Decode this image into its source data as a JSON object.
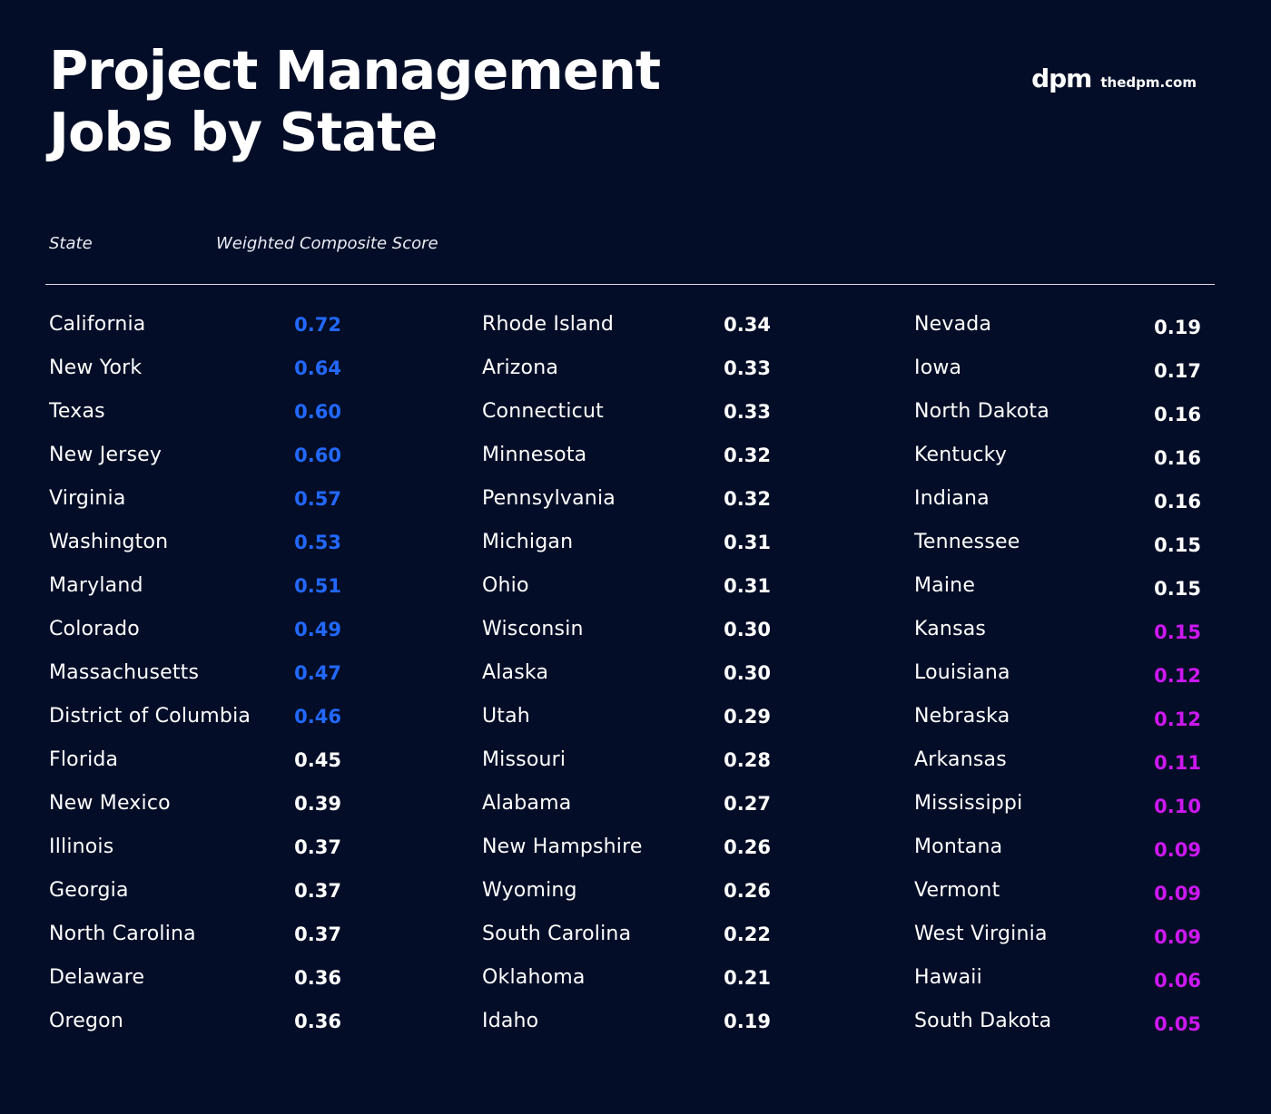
{
  "title": {
    "line1": "Project Management",
    "line2": "Jobs by State"
  },
  "brand": {
    "logo": "dpm",
    "site": "thedpm.com"
  },
  "headers": {
    "state": "State",
    "score": "Weighted Composite Score"
  },
  "colors": {
    "background": "#030d27",
    "top_tier": "#2268ff",
    "mid_tier": "#ffffff",
    "bottom_tier": "#cc18f0"
  },
  "columns": [
    [
      {
        "state": "California",
        "score": "0.72",
        "tier": "blue"
      },
      {
        "state": "New York",
        "score": "0.64",
        "tier": "blue"
      },
      {
        "state": "Texas",
        "score": "0.60",
        "tier": "blue"
      },
      {
        "state": "New Jersey",
        "score": "0.60",
        "tier": "blue"
      },
      {
        "state": "Virginia",
        "score": "0.57",
        "tier": "blue"
      },
      {
        "state": "Washington",
        "score": "0.53",
        "tier": "blue"
      },
      {
        "state": "Maryland",
        "score": "0.51",
        "tier": "blue"
      },
      {
        "state": "Colorado",
        "score": "0.49",
        "tier": "blue"
      },
      {
        "state": "Massachusetts",
        "score": "0.47",
        "tier": "blue"
      },
      {
        "state": "District of Columbia",
        "score": "0.46",
        "tier": "blue"
      },
      {
        "state": "Florida",
        "score": "0.45",
        "tier": "white"
      },
      {
        "state": "New Mexico",
        "score": "0.39",
        "tier": "white"
      },
      {
        "state": "Illinois",
        "score": "0.37",
        "tier": "white"
      },
      {
        "state": "Georgia",
        "score": "0.37",
        "tier": "white"
      },
      {
        "state": "North Carolina",
        "score": "0.37",
        "tier": "white"
      },
      {
        "state": "Delaware",
        "score": "0.36",
        "tier": "white"
      },
      {
        "state": "Oregon",
        "score": "0.36",
        "tier": "white"
      }
    ],
    [
      {
        "state": "Rhode Island",
        "score": "0.34",
        "tier": "white"
      },
      {
        "state": "Arizona",
        "score": "0.33",
        "tier": "white"
      },
      {
        "state": "Connecticut",
        "score": "0.33",
        "tier": "white"
      },
      {
        "state": "Minnesota",
        "score": "0.32",
        "tier": "white"
      },
      {
        "state": "Pennsylvania",
        "score": "0.32",
        "tier": "white"
      },
      {
        "state": "Michigan",
        "score": "0.31",
        "tier": "white"
      },
      {
        "state": "Ohio",
        "score": "0.31",
        "tier": "white"
      },
      {
        "state": "Wisconsin",
        "score": "0.30",
        "tier": "white"
      },
      {
        "state": "Alaska",
        "score": "0.30",
        "tier": "white"
      },
      {
        "state": "Utah",
        "score": "0.29",
        "tier": "white"
      },
      {
        "state": "Missouri",
        "score": "0.28",
        "tier": "white"
      },
      {
        "state": "Alabama",
        "score": "0.27",
        "tier": "white"
      },
      {
        "state": "New Hampshire",
        "score": "0.26",
        "tier": "white"
      },
      {
        "state": "Wyoming",
        "score": "0.26",
        "tier": "white"
      },
      {
        "state": "South Carolina",
        "score": "0.22",
        "tier": "white"
      },
      {
        "state": "Oklahoma",
        "score": "0.21",
        "tier": "white"
      },
      {
        "state": "Idaho",
        "score": "0.19",
        "tier": "white"
      }
    ],
    [
      {
        "state": "Nevada",
        "score": "0.19",
        "tier": "white"
      },
      {
        "state": "Iowa",
        "score": "0.17",
        "tier": "white"
      },
      {
        "state": "North Dakota",
        "score": "0.16",
        "tier": "white"
      },
      {
        "state": "Kentucky",
        "score": "0.16",
        "tier": "white"
      },
      {
        "state": "Indiana",
        "score": "0.16",
        "tier": "white"
      },
      {
        "state": "Tennessee",
        "score": "0.15",
        "tier": "white"
      },
      {
        "state": "Maine",
        "score": "0.15",
        "tier": "white"
      },
      {
        "state": "Kansas",
        "score": "0.15",
        "tier": "purple"
      },
      {
        "state": "Louisiana",
        "score": "0.12",
        "tier": "purple"
      },
      {
        "state": "Nebraska",
        "score": "0.12",
        "tier": "purple"
      },
      {
        "state": "Arkansas",
        "score": "0.11",
        "tier": "purple"
      },
      {
        "state": "Mississippi",
        "score": "0.10",
        "tier": "purple"
      },
      {
        "state": "Montana",
        "score": "0.09",
        "tier": "purple"
      },
      {
        "state": "Vermont",
        "score": "0.09",
        "tier": "purple"
      },
      {
        "state": "West Virginia",
        "score": "0.09",
        "tier": "purple"
      },
      {
        "state": "Hawaii",
        "score": "0.06",
        "tier": "purple"
      },
      {
        "state": "South Dakota",
        "score": "0.05",
        "tier": "purple"
      }
    ]
  ]
}
